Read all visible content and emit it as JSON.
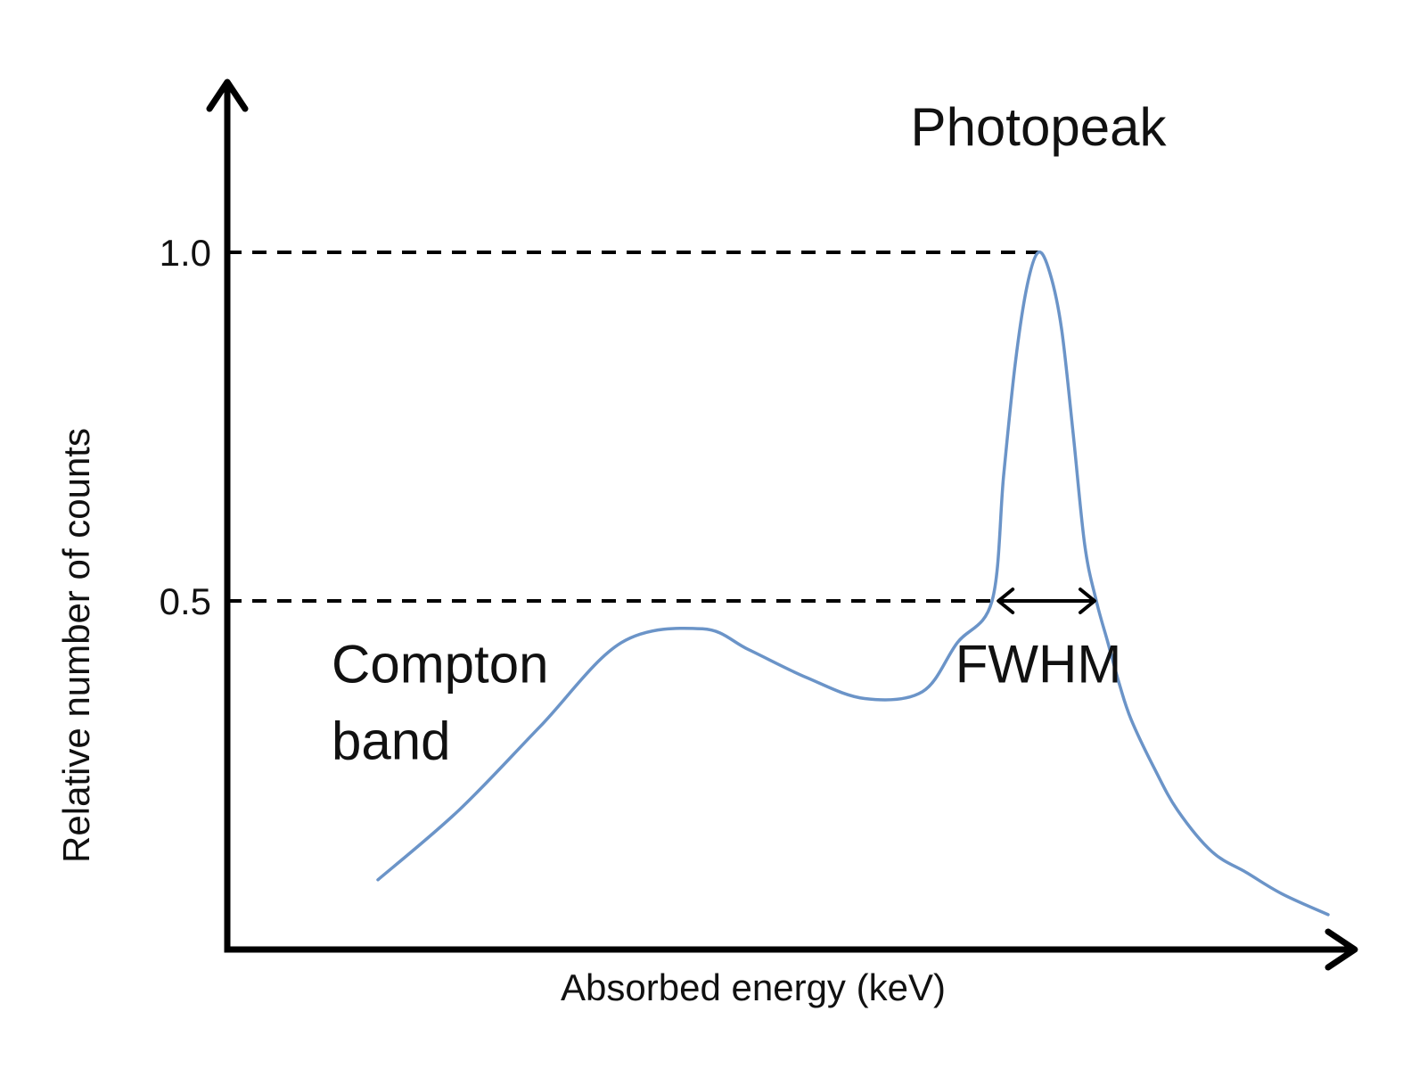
{
  "chart_data": {
    "type": "line",
    "title": "",
    "xlabel": "Absorbed energy (keV)",
    "ylabel": "Relative number of counts",
    "yticks": [
      {
        "value": 0.5,
        "label": "0.5"
      },
      {
        "value": 1.0,
        "label": "1.0"
      }
    ],
    "xlim": [
      0,
      1
    ],
    "ylim": [
      0,
      1.3
    ],
    "grid": false,
    "series": [
      {
        "color": "#6b94c8",
        "x": [
          0.13,
          0.2,
          0.27,
          0.34,
          0.41,
          0.45,
          0.5,
          0.55,
          0.6,
          0.63,
          0.66,
          0.67,
          0.68,
          0.69,
          0.7,
          0.71,
          0.72,
          0.73,
          0.74,
          0.75,
          0.76,
          0.77,
          0.78,
          0.8,
          0.82,
          0.85,
          0.88,
          0.91,
          0.95
        ],
        "y": [
          0.1,
          0.2,
          0.32,
          0.44,
          0.46,
          0.43,
          0.39,
          0.36,
          0.37,
          0.44,
          0.5,
          0.68,
          0.84,
          0.95,
          1.0,
          0.97,
          0.89,
          0.74,
          0.58,
          0.5,
          0.44,
          0.38,
          0.33,
          0.26,
          0.2,
          0.14,
          0.11,
          0.08,
          0.05
        ]
      }
    ],
    "reference_lines": [
      {
        "y": 1.0,
        "x_end": 0.7,
        "style": "dashed"
      },
      {
        "y": 0.5,
        "x_end": 0.664,
        "style": "dashed"
      }
    ],
    "fwhm_span": {
      "y": 0.5,
      "x_from": 0.664,
      "x_to": 0.75
    },
    "annotations": [
      {
        "text": "Photopeak",
        "x": 0.7,
        "y": 1.18
      },
      {
        "text": "Compton",
        "x": 0.09,
        "y": 0.41
      },
      {
        "text": "band",
        "x": 0.09,
        "y": 0.3
      },
      {
        "text": "FWHM",
        "x": 0.7,
        "y": 0.41
      }
    ],
    "colors": {
      "axes": "#000000",
      "curve": "#6b94c8",
      "text": "#111111"
    }
  }
}
